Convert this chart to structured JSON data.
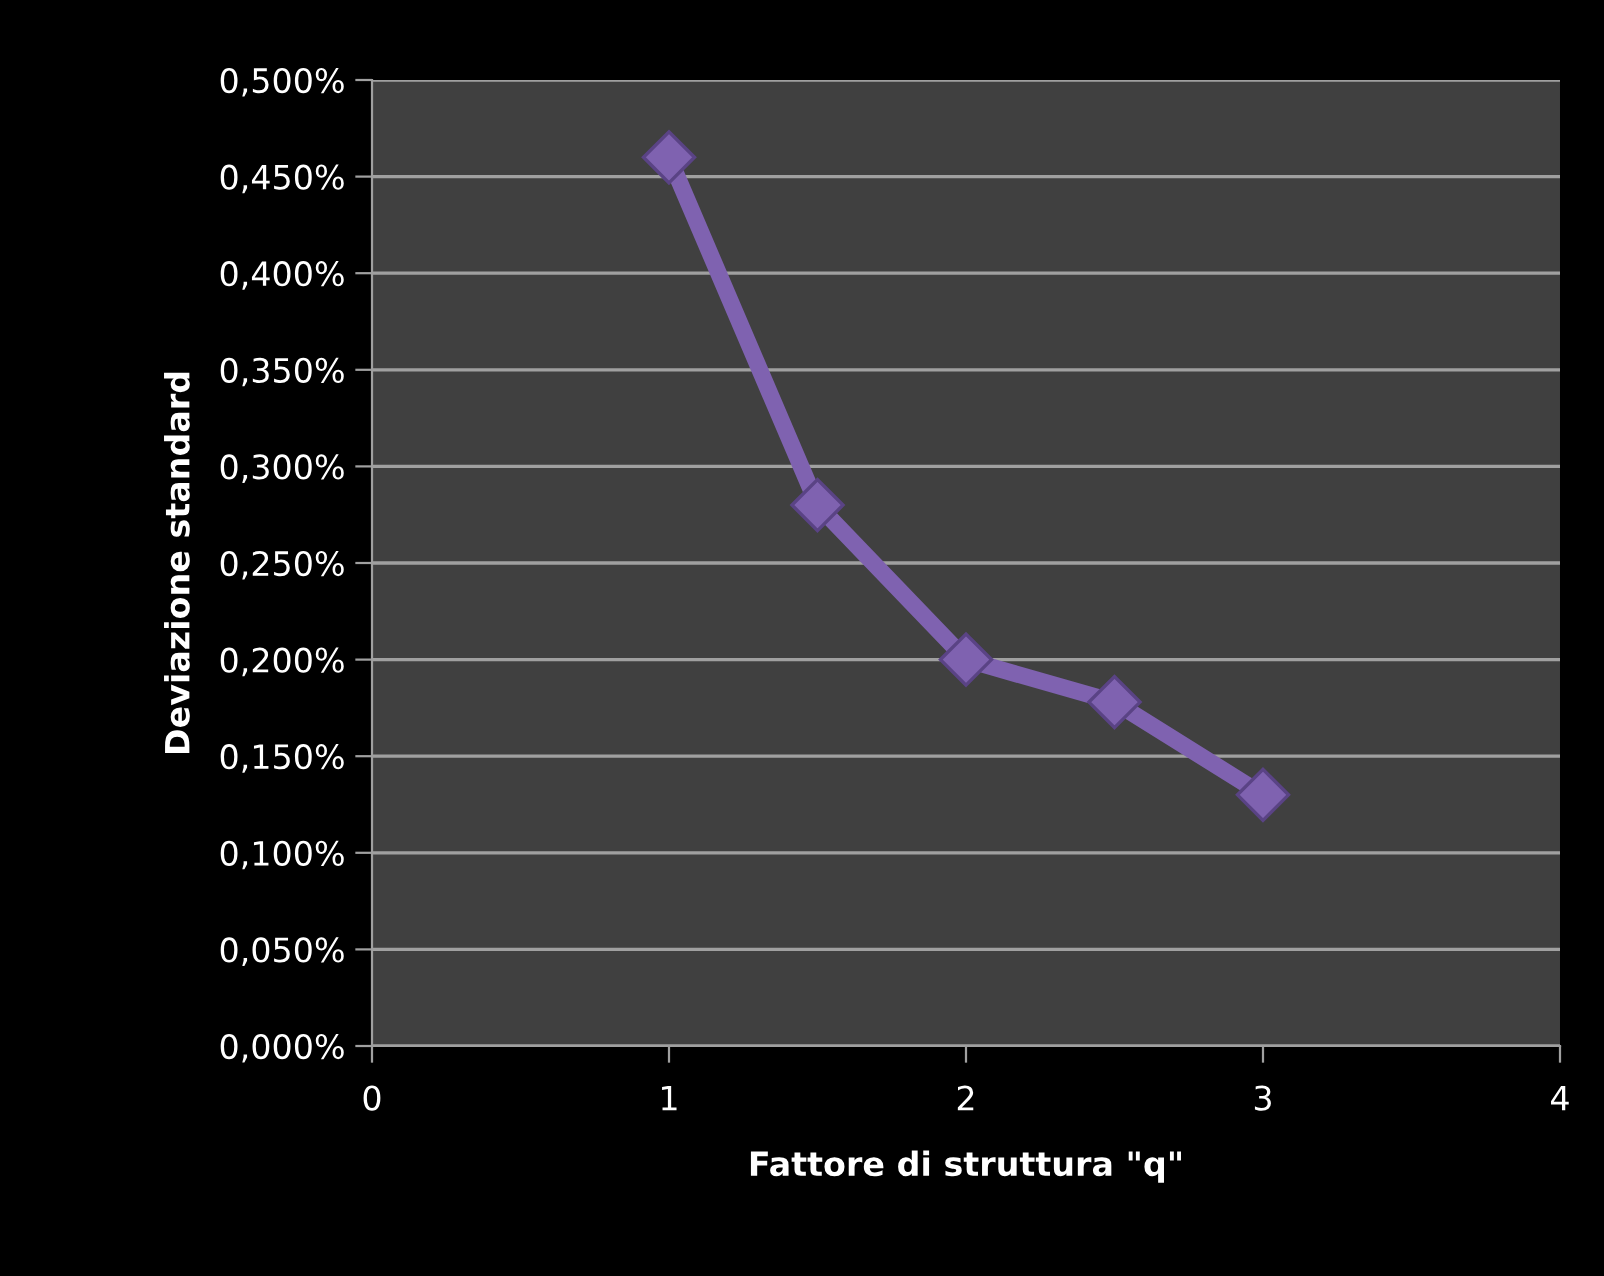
{
  "chart_data": {
    "type": "line",
    "xlabel": "Fattore di struttura \"q\"",
    "ylabel": "Deviazione standard",
    "x": [
      1,
      1.5,
      2,
      2.5,
      3
    ],
    "series": [
      {
        "color": "#7f62b0",
        "values": [
          0.46,
          0.28,
          0.2,
          0.178,
          0.13
        ]
      }
    ],
    "marker": "diamond",
    "line_style": "solid",
    "grid": "y",
    "legend": false,
    "xlim": [
      0,
      4
    ],
    "xticks": [
      0,
      1,
      2,
      3,
      4
    ],
    "ylim": [
      0,
      0.5
    ],
    "yticks": [
      {
        "value": 0,
        "label": "0,000%"
      },
      {
        "value": 0.05,
        "label": "0,050%"
      },
      {
        "value": 0.1,
        "label": "0,100%"
      },
      {
        "value": 0.15,
        "label": "0,150%"
      },
      {
        "value": 0.2,
        "label": "0,200%"
      },
      {
        "value": 0.25,
        "label": "0,250%"
      },
      {
        "value": 0.3,
        "label": "0,300%"
      },
      {
        "value": 0.35,
        "label": "0,350%"
      },
      {
        "value": 0.4,
        "label": "0,400%"
      },
      {
        "value": 0.45,
        "label": "0,450%"
      },
      {
        "value": 0.5,
        "label": "0,500%"
      }
    ]
  }
}
